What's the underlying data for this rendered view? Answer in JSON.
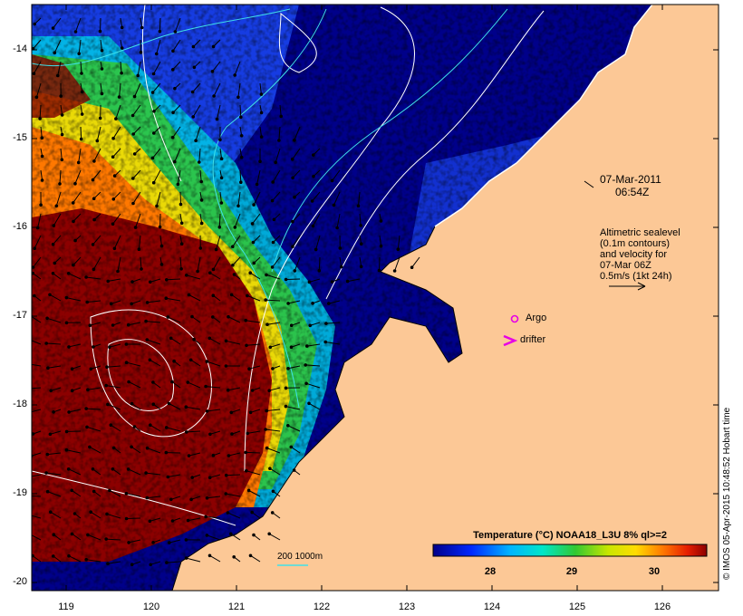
{
  "map": {
    "y_axis_ticks": [
      "-14",
      "-15",
      "-16",
      "-17",
      "-18",
      "-19",
      "-20"
    ],
    "x_axis_ticks": [
      "119",
      "120",
      "121",
      "122",
      "123",
      "124",
      "125",
      "126"
    ],
    "date_line1": "07-Mar-2011",
    "date_line2": "06:54Z",
    "altimetry_legend": [
      "Altimetric sealevel",
      "(0.1m contours)",
      "and velocity for",
      "07-Mar 06Z",
      "0.5m/s (1kt 24h)"
    ],
    "argo_label": "Argo",
    "drifter_label": "drifter",
    "depth_legend": "200  1000m",
    "colorbar_title": "Temperature (°C) NOAA18_L3U 8% ql>=2",
    "colorbar_ticks": [
      "28",
      "29",
      "30"
    ],
    "timestamp": "© IMOS 05-Apr-2015 10:48:52 Hobart time",
    "colors": {
      "land": "#fcc896",
      "cold": "#00008a",
      "mid_blue": "#1e50ff",
      "cyan": "#00c8e6",
      "green": "#32c832",
      "yellow": "#ffdc00",
      "orange": "#ff7800",
      "warm": "#8c0000",
      "argo": "#e600e6",
      "contour_white": "#ffffff",
      "contour_cyan": "#40e0e8"
    }
  }
}
